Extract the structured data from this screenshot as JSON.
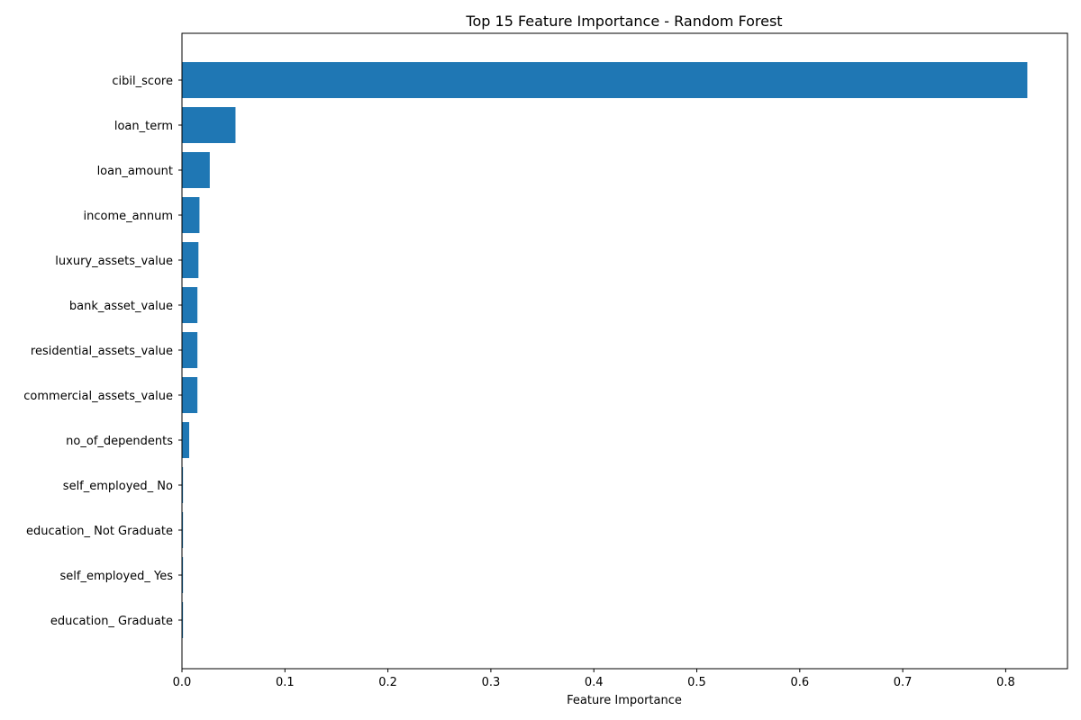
{
  "chart_data": {
    "type": "bar",
    "orientation": "horizontal",
    "title": "Top 15 Feature Importance - Random Forest",
    "xlabel": "Feature Importance",
    "ylabel": "",
    "xlim": [
      0,
      0.86
    ],
    "x_ticks": [
      "0.0",
      "0.1",
      "0.2",
      "0.3",
      "0.4",
      "0.5",
      "0.6",
      "0.7",
      "0.8"
    ],
    "grid": false,
    "bar_color": "#1f77b4",
    "categories": [
      "cibil_score",
      "loan_term",
      "loan_amount",
      "income_annum",
      "luxury_assets_value",
      "bank_asset_value",
      "residential_assets_value",
      "commercial_assets_value",
      "no_of_dependents",
      "self_employed_ No",
      "education_ Not Graduate",
      "self_employed_ Yes",
      "education_ Graduate"
    ],
    "values": [
      0.821,
      0.052,
      0.027,
      0.017,
      0.016,
      0.015,
      0.015,
      0.015,
      0.007,
      0.001,
      0.001,
      0.001,
      0.001
    ]
  }
}
